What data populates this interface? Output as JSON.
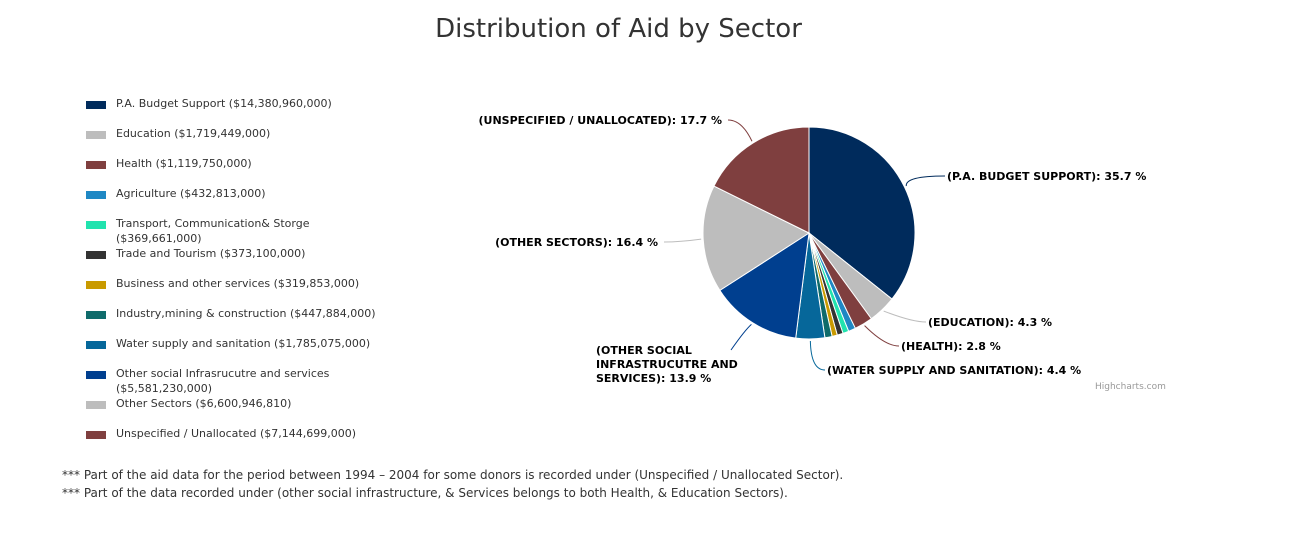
{
  "chart_data": {
    "type": "pie",
    "title": "Distribution of Aid by Sector",
    "legend_position": "left",
    "series": [
      {
        "name": "P.A. Budget Support ($14,380,960,000)",
        "value": 35.7,
        "color": "#002b5c",
        "data_label": "(P.A. BUDGET SUPPORT): 35.7 %"
      },
      {
        "name": "Education ($1,719,449,000)",
        "value": 4.3,
        "color": "#bdbdbd",
        "data_label": "(EDUCATION): 4.3 %"
      },
      {
        "name": "Health ($1,119,750,000)",
        "value": 2.8,
        "color": "#7f3f3f",
        "data_label": "(HEALTH): 2.8 %"
      },
      {
        "name": "Agriculture ($432,813,000)",
        "value": 1.1,
        "color": "#1f88c4",
        "data_label": ""
      },
      {
        "name": "Transport, Communication& Storge ($369,661,000)",
        "value": 0.9,
        "color": "#21e3ae",
        "data_label": ""
      },
      {
        "name": "Trade and Tourism ($373,100,000)",
        "value": 0.9,
        "color": "#333333",
        "data_label": ""
      },
      {
        "name": "Business and other services ($319,853,000)",
        "value": 0.8,
        "color": "#c99a00",
        "data_label": ""
      },
      {
        "name": "Industry,mining & construction ($447,884,000)",
        "value": 1.1,
        "color": "#0f6b6b",
        "data_label": ""
      },
      {
        "name": "Water supply and sanitation ($1,785,075,000)",
        "value": 4.4,
        "color": "#06679a",
        "data_label": "(WATER SUPPLY AND SANITATION): 4.4 %"
      },
      {
        "name": "Other social Infrasrucutre and services ($5,581,230,000)",
        "value": 13.9,
        "color": "#003f8f",
        "data_label": "(OTHER SOCIAL INFRASTRUCUTRE AND SERVICES): 13.9 %"
      },
      {
        "name": "Other Sectors ($6,600,946,810)",
        "value": 16.4,
        "color": "#bdbdbd",
        "data_label": "(OTHER SECTORS): 16.4 %"
      },
      {
        "name": "Unspecified / Unallocated ($7,144,699,000)",
        "value": 17.7,
        "color": "#7f3f3f",
        "data_label": "(UNSPECIFIED / UNALLOCATED): 17.7 %"
      }
    ]
  },
  "credits": "Highcharts.com",
  "footnotes": [
    "*** Part of the aid data for the period between 1994 – 2004 for some donors is recorded under (Unspecified / Unallocated Sector).",
    "*** Part of the data recorded under (other social infrastructure, & Services belongs to both Health, & Education Sectors)."
  ]
}
